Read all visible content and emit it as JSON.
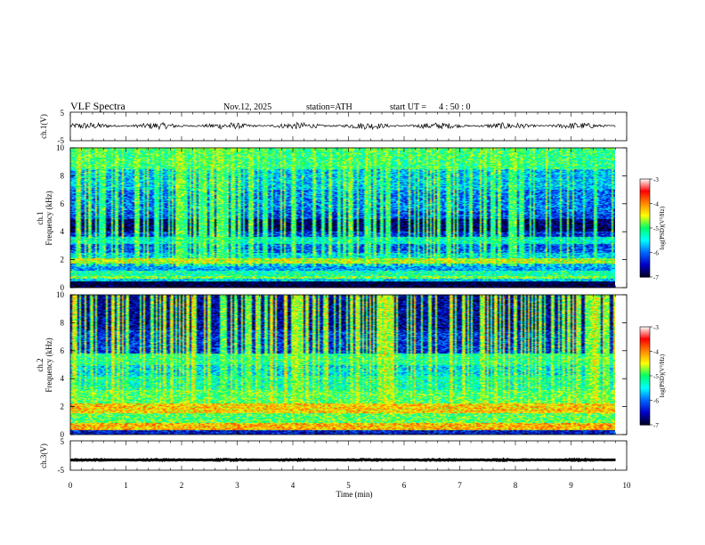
{
  "header": {
    "title": "VLF  Spectra",
    "date": "Nov.12, 2025",
    "station": "station=ATH",
    "start_label": "start  UT  =",
    "start_time": "4  : 50 : 0"
  },
  "chart_data": [
    {
      "name": "ch1-waveform",
      "type": "line",
      "ylabel": "ch.1(V)",
      "ylim": [
        -5,
        5
      ],
      "yticks": [
        "5",
        "-5"
      ],
      "xlim": [
        0,
        10
      ],
      "x_extent_min": [
        0,
        9.8
      ],
      "baseline_v": 0.2,
      "noise_amplitude_v": 1.2
    },
    {
      "name": "ch1-spectrogram",
      "type": "heatmap",
      "ylabel_line1": "ch.1",
      "ylabel_line2": "Frequency  (kHz)",
      "ylim_khz": [
        0,
        10
      ],
      "yticks": [
        "0",
        "2",
        "4",
        "6",
        "8",
        "10"
      ],
      "xlim_min": [
        0,
        10
      ],
      "x_extent_min": [
        0,
        9.8
      ],
      "color_scale": {
        "label": "log(PSD)(V²/Hz)",
        "min": -7,
        "max": -3,
        "ticks": [
          "-3",
          "-4",
          "-5",
          "-6",
          "-7"
        ],
        "colors": [
          "#000020",
          "#0000c8",
          "#0066ff",
          "#00ffff",
          "#00ff66",
          "#ffff00",
          "#ff8800",
          "#ff0000",
          "#ffffff"
        ]
      },
      "bands": [
        {
          "f_khz": [
            0.0,
            0.4
          ],
          "level": -7.0
        },
        {
          "f_khz": [
            0.4,
            0.6
          ],
          "level": -5.6
        },
        {
          "f_khz": [
            0.6,
            0.8
          ],
          "level": -4.8
        },
        {
          "f_khz": [
            0.8,
            1.2
          ],
          "level": -5.2
        },
        {
          "f_khz": [
            1.2,
            1.7
          ],
          "level": -5.8
        },
        {
          "f_khz": [
            1.7,
            2.1
          ],
          "level": -4.6
        },
        {
          "f_khz": [
            2.1,
            2.5
          ],
          "level": -5.6
        },
        {
          "f_khz": [
            2.5,
            3.1
          ],
          "level": -6.1
        },
        {
          "f_khz": [
            3.1,
            3.6
          ],
          "level": -5.4
        },
        {
          "f_khz": [
            3.6,
            4.0
          ],
          "level": -6.3
        },
        {
          "f_khz": [
            4.0,
            4.9
          ],
          "level": -6.8
        },
        {
          "f_khz": [
            4.9,
            5.5
          ],
          "level": -6.2
        },
        {
          "f_khz": [
            5.5,
            7.0
          ],
          "level": -6.0
        },
        {
          "f_khz": [
            7.0,
            8.5
          ],
          "level": -5.7
        },
        {
          "f_khz": [
            8.5,
            10.0
          ],
          "level": -5.1
        }
      ],
      "spike_rate": 0.45,
      "spike_level": -4.6
    },
    {
      "name": "ch2-spectrogram",
      "type": "heatmap",
      "ylabel_line1": "ch.2",
      "ylabel_line2": "Frequency  (kHz)",
      "ylim_khz": [
        0,
        10
      ],
      "yticks": [
        "0",
        "2",
        "4",
        "6",
        "8",
        "10"
      ],
      "xlim_min": [
        0,
        10
      ],
      "x_extent_min": [
        0,
        9.8
      ],
      "color_scale": {
        "label": "log(PSD)(V²/Hz)",
        "min": -7,
        "max": -3,
        "ticks": [
          "-3",
          "-4",
          "-5",
          "-6",
          "-7"
        ],
        "colors": [
          "#000020",
          "#0000c8",
          "#0066ff",
          "#00ffff",
          "#00ff66",
          "#ffff00",
          "#ff8800",
          "#ff0000",
          "#ffffff"
        ]
      },
      "bands": [
        {
          "f_khz": [
            0.0,
            0.3
          ],
          "level": -6.4
        },
        {
          "f_khz": [
            0.3,
            0.8
          ],
          "level": -4.2
        },
        {
          "f_khz": [
            0.8,
            1.5
          ],
          "level": -4.9
        },
        {
          "f_khz": [
            1.5,
            2.2
          ],
          "level": -4.3
        },
        {
          "f_khz": [
            2.2,
            3.2
          ],
          "level": -5.0
        },
        {
          "f_khz": [
            3.2,
            4.2
          ],
          "level": -5.3
        },
        {
          "f_khz": [
            4.2,
            5.0
          ],
          "level": -5.6
        },
        {
          "f_khz": [
            5.0,
            5.8
          ],
          "level": -5.2
        },
        {
          "f_khz": [
            5.8,
            7.5
          ],
          "level": -6.3
        },
        {
          "f_khz": [
            7.5,
            10.0
          ],
          "level": -6.6
        }
      ],
      "spike_rate": 0.5,
      "spike_level": -4.4
    },
    {
      "name": "ch3-waveform",
      "type": "line",
      "ylabel": "ch.3(V)",
      "ylim": [
        -5,
        5
      ],
      "yticks": [
        "5",
        "-5"
      ],
      "xlim": [
        0,
        10
      ],
      "x_extent_min": [
        0,
        9.8
      ],
      "baseline_v": -1.5,
      "noise_amplitude_v": 0.2
    }
  ],
  "x_axis": {
    "label": "Time  (min)",
    "ticks": [
      "0",
      "1",
      "2",
      "3",
      "4",
      "5",
      "6",
      "7",
      "8",
      "9",
      "10"
    ]
  }
}
